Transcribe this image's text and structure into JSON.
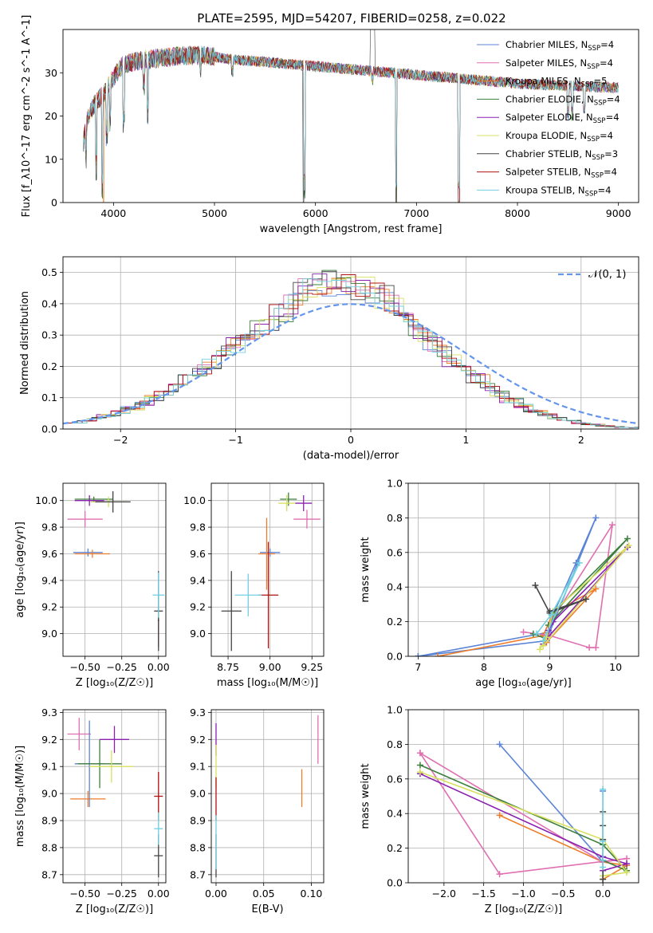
{
  "title": "PLATE=2595, MJD=54207, FIBERID=0258, z=0.022",
  "colors": {
    "chabrier_miles": "#5b84d6",
    "salpeter_miles": "#e06fb0",
    "kroupa_miles": "#ee7d2a",
    "chabrier_elodie": "#3d7f3d",
    "salpeter_elodie": "#8a20b0",
    "kroupa_elodie": "#d8e060",
    "chabrier_stelib": "#444444",
    "salpeter_stelib": "#b01010",
    "kroupa_stelib": "#70d0e0",
    "gauss": "#6495ED"
  },
  "chart_data": [
    {
      "id": "spectrum",
      "type": "line",
      "xlabel": "wavelength [Angstrom, rest frame]",
      "ylabel": "Flux [f_λ10^-17 erg cm^-2 s^-1 A^-1]",
      "xlim": [
        3500,
        9200
      ],
      "ylim": [
        0,
        40
      ],
      "xticks": [
        "4000",
        "5000",
        "6000",
        "7000",
        "8000",
        "9000"
      ],
      "yticks": [
        "0",
        "10",
        "20",
        "30"
      ],
      "grid": false,
      "legend_position": "top-right",
      "legend": [
        {
          "key": "chabrier_miles",
          "label": "Chabrier MILES, N",
          "sub": "SSP",
          "val": "=4"
        },
        {
          "key": "salpeter_miles",
          "label": "Salpeter MILES, N",
          "sub": "SSP",
          "val": "=4"
        },
        {
          "key": "kroupa_miles",
          "label": "Kroupa MILES, N",
          "sub": "SSP",
          "val": "=5"
        },
        {
          "key": "chabrier_elodie",
          "label": "Chabrier ELODIE, N",
          "sub": "SSP",
          "val": "=4"
        },
        {
          "key": "salpeter_elodie",
          "label": "Salpeter ELODIE, N",
          "sub": "SSP",
          "val": "=4"
        },
        {
          "key": "kroupa_elodie",
          "label": "Kroupa ELODIE, N",
          "sub": "SSP",
          "val": "=4"
        },
        {
          "key": "chabrier_stelib",
          "label": "Chabrier STELIB, N",
          "sub": "SSP",
          "val": "=3"
        },
        {
          "key": "salpeter_stelib",
          "label": "Salpeter STELIB, N",
          "sub": "SSP",
          "val": "=4"
        },
        {
          "key": "kroupa_stelib",
          "label": "Kroupa STELIB, N",
          "sub": "SSP",
          "val": "=4"
        }
      ],
      "continuum": [
        [
          3700,
          14
        ],
        [
          3750,
          20
        ],
        [
          3820,
          23
        ],
        [
          3900,
          25
        ],
        [
          4000,
          29
        ],
        [
          4100,
          32
        ],
        [
          4300,
          33
        ],
        [
          4500,
          33.5
        ],
        [
          4700,
          34
        ],
        [
          4900,
          34
        ],
        [
          5200,
          33
        ],
        [
          5500,
          32.5
        ],
        [
          6000,
          31.5
        ],
        [
          6500,
          30.5
        ],
        [
          7000,
          29.5
        ],
        [
          7500,
          28.5
        ],
        [
          8000,
          27.5
        ],
        [
          8500,
          27
        ],
        [
          9000,
          26.5
        ]
      ],
      "dips": [
        [
          3727,
          8
        ],
        [
          3830,
          16
        ],
        [
          3890,
          22
        ],
        [
          3933,
          11
        ],
        [
          3968,
          9
        ],
        [
          4102,
          14
        ],
        [
          4300,
          6
        ],
        [
          4340,
          13
        ],
        [
          4861,
          3
        ],
        [
          5175,
          3
        ],
        [
          5890,
          30
        ],
        [
          6563,
          2
        ],
        [
          6800,
          30
        ],
        [
          7420,
          29
        ],
        [
          8500,
          7
        ],
        [
          8542,
          7
        ],
        [
          8662,
          6
        ]
      ],
      "spike": [
        6563,
        40
      ]
    },
    {
      "id": "residuals",
      "type": "histogram",
      "xlabel": "(data-model)/error",
      "ylabel": "Normed distribution",
      "xlim": [
        -2.5,
        2.5
      ],
      "ylim": [
        0,
        0.55
      ],
      "xticks": [
        "−2",
        "−1",
        "0",
        "1",
        "2"
      ],
      "yticks": [
        "0.0",
        "0.1",
        "0.2",
        "0.3",
        "0.4",
        "0.5"
      ],
      "grid": true,
      "legend_position": "top-right",
      "legend_label": "𝒩(0, 1)",
      "bin_edges": [
        -2.5,
        2.5,
        41
      ],
      "base_density": [
        0.017,
        0.021,
        0.027,
        0.034,
        0.043,
        0.054,
        0.067,
        0.082,
        0.099,
        0.118,
        0.14,
        0.163,
        0.188,
        0.214,
        0.241,
        0.268,
        0.296,
        0.322,
        0.347,
        0.37,
        0.39,
        0.406,
        0.418,
        0.425,
        0.427,
        0.423,
        0.414,
        0.4,
        0.381,
        0.358,
        0.333,
        0.305,
        0.276,
        0.246,
        0.217,
        0.188,
        0.161,
        0.136,
        0.113,
        0.092,
        0.074,
        0.058,
        0.045,
        0.034,
        0.026,
        0.019,
        0.014,
        0.01,
        0.007,
        0.005,
        0.004
      ]
    },
    {
      "id": "age-vs-Z",
      "type": "errorbar",
      "xlabel": "Z [log₁₀(Z/Z☉)]",
      "ylabel": "age [log₁₀(age/yr)]",
      "xlim": [
        -0.65,
        0.05
      ],
      "ylim": [
        8.83,
        10.13
      ],
      "xticks": [
        "−0.50",
        "−0.25",
        "0.00"
      ],
      "yticks": [
        "9.0",
        "9.2",
        "9.4",
        "9.6",
        "9.8",
        "10.0"
      ],
      "grid": true,
      "points": [
        {
          "c": "chabrier_miles",
          "x": -0.48,
          "xe": 0.1,
          "y": 9.61,
          "ye": 0.03
        },
        {
          "c": "kroupa_miles",
          "x": -0.45,
          "xe": 0.12,
          "y": 9.6,
          "ye": 0.03
        },
        {
          "c": "salpeter_miles",
          "x": -0.5,
          "xe": 0.12,
          "y": 9.86,
          "ye": 0.06
        },
        {
          "c": "chabrier_elodie",
          "x": -0.44,
          "xe": 0.13,
          "y": 10.01,
          "ye": 0.02
        },
        {
          "c": "salpeter_elodie",
          "x": -0.47,
          "xe": 0.1,
          "y": 10.0,
          "ye": 0.04
        },
        {
          "c": "kroupa_elodie",
          "x": -0.34,
          "xe": 0.12,
          "y": 9.99,
          "ye": 0.04
        },
        {
          "c": "chabrier_stelib",
          "x": -0.31,
          "xe": 0.12,
          "y": 9.99,
          "ye": 0.08
        },
        {
          "c": "salpeter_stelib",
          "x": 0.0,
          "xe": 0.005,
          "y": 9.1,
          "ye": 0.2
        },
        {
          "c": "chabrier_stelib",
          "x": 0.0,
          "xe": 0.03,
          "y": 9.17,
          "ye": 0.3
        },
        {
          "c": "kroupa_stelib",
          "x": 0.0,
          "xe": 0.04,
          "y": 9.29,
          "ye": 0.17
        }
      ]
    },
    {
      "id": "age-vs-mass",
      "type": "errorbar",
      "xlabel": "mass [log₁₀(M/M☉)]",
      "ylabel": "",
      "xlim": [
        8.65,
        9.32
      ],
      "ylim": [
        8.83,
        10.13
      ],
      "xticks": [
        "8.75",
        "9.00",
        "9.25"
      ],
      "yticks": [
        "9.0",
        "9.2",
        "9.4",
        "9.6",
        "9.8",
        "10.0"
      ],
      "grid": true,
      "points": [
        {
          "c": "chabrier_miles",
          "x": 9.0,
          "xe": 0.06,
          "y": 9.61,
          "ye": 0.03
        },
        {
          "c": "kroupa_miles",
          "x": 8.98,
          "xe": 0.05,
          "y": 9.6,
          "ye": 0.27
        },
        {
          "c": "salpeter_miles",
          "x": 9.22,
          "xe": 0.08,
          "y": 9.86,
          "ye": 0.07
        },
        {
          "c": "chabrier_elodie",
          "x": 9.11,
          "xe": 0.05,
          "y": 10.01,
          "ye": 0.05
        },
        {
          "c": "salpeter_elodie",
          "x": 9.2,
          "xe": 0.05,
          "y": 9.98,
          "ye": 0.06
        },
        {
          "c": "kroupa_elodie",
          "x": 9.1,
          "xe": 0.05,
          "y": 9.98,
          "ye": 0.06
        },
        {
          "c": "salpeter_stelib",
          "x": 8.99,
          "xe": 0.06,
          "y": 9.29,
          "ye": 0.4
        },
        {
          "c": "chabrier_stelib",
          "x": 8.77,
          "xe": 0.06,
          "y": 9.17,
          "ye": 0.3
        },
        {
          "c": "kroupa_stelib",
          "x": 8.87,
          "xe": 0.08,
          "y": 9.29,
          "ye": 0.16
        }
      ]
    },
    {
      "id": "weight-vs-age",
      "type": "line",
      "xlabel": "age [log₁₀(age/yr)]",
      "ylabel": "mass weight",
      "xlim": [
        6.85,
        10.35
      ],
      "ylim": [
        0,
        1
      ],
      "xticks": [
        "7",
        "8",
        "9",
        "10"
      ],
      "yticks": [
        "0.0",
        "0.2",
        "0.4",
        "0.6",
        "0.8",
        "1.0"
      ],
      "grid": true,
      "series": [
        {
          "c": "chabrier_miles",
          "pts": [
            [
              7.0,
              0.0
            ],
            [
              8.95,
              0.09
            ],
            [
              9.05,
              0.24
            ],
            [
              9.4,
              0.54
            ],
            [
              9.7,
              0.8
            ],
            [
              9.0,
              0.14
            ],
            [
              7.0,
              0.0
            ]
          ]
        },
        {
          "c": "kroupa_miles",
          "pts": [
            [
              7.3,
              0.0
            ],
            [
              8.9,
              0.12
            ],
            [
              9.05,
              0.25
            ],
            [
              9.7,
              0.39
            ],
            [
              8.95,
              0.08
            ]
          ]
        },
        {
          "c": "salpeter_miles",
          "pts": [
            [
              8.6,
              0.14
            ],
            [
              9.0,
              0.12
            ],
            [
              9.6,
              0.05
            ],
            [
              9.7,
              0.05
            ],
            [
              9.95,
              0.76
            ],
            [
              9.05,
              0.22
            ]
          ]
        },
        {
          "c": "chabrier_elodie",
          "pts": [
            [
              8.75,
              0.13
            ],
            [
              8.95,
              0.1
            ],
            [
              9.05,
              0.25
            ],
            [
              10.18,
              0.68
            ],
            [
              8.98,
              0.18
            ]
          ]
        },
        {
          "c": "salpeter_elodie",
          "pts": [
            [
              8.9,
              0.07
            ],
            [
              8.98,
              0.15
            ],
            [
              9.05,
              0.2
            ],
            [
              10.18,
              0.63
            ],
            [
              8.95,
              0.1
            ]
          ]
        },
        {
          "c": "kroupa_elodie",
          "pts": [
            [
              8.85,
              0.04
            ],
            [
              8.95,
              0.11
            ],
            [
              9.05,
              0.26
            ],
            [
              10.2,
              0.64
            ],
            [
              8.9,
              0.06
            ]
          ]
        },
        {
          "c": "chabrier_stelib",
          "pts": [
            [
              8.78,
              0.41
            ],
            [
              9.0,
              0.25
            ],
            [
              9.55,
              0.33
            ],
            [
              9.0,
              0.26
            ]
          ]
        },
        {
          "c": "kroupa_stelib",
          "pts": [
            [
              8.8,
              0.13
            ],
            [
              9.02,
              0.24
            ],
            [
              9.45,
              0.54
            ],
            [
              8.9,
              0.09
            ]
          ]
        }
      ]
    },
    {
      "id": "mass-vs-Z",
      "type": "errorbar",
      "xlabel": "Z [log₁₀(Z/Z☉)]",
      "ylabel": "mass [log₁₀(M/M☉)]",
      "xlim": [
        -0.65,
        0.05
      ],
      "ylim": [
        8.67,
        9.31
      ],
      "xticks": [
        "−0.50",
        "−0.25",
        "0.00"
      ],
      "yticks": [
        "8.7",
        "8.8",
        "8.9",
        "9.0",
        "9.1",
        "9.2",
        "9.3"
      ],
      "grid": true,
      "points": [
        {
          "c": "kroupa_miles",
          "x": -0.48,
          "xe": 0.12,
          "y": 8.98,
          "ye": 0.03
        },
        {
          "c": "salpeter_miles",
          "x": -0.54,
          "xe": 0.08,
          "y": 9.22,
          "ye": 0.06
        },
        {
          "c": "chabrier_miles",
          "x": -0.47,
          "xe": 0.1,
          "y": 9.11,
          "ye": 0.16
        },
        {
          "c": "chabrier_elodie",
          "x": -0.4,
          "xe": 0.15,
          "y": 9.11,
          "ye": 0.09
        },
        {
          "c": "salpeter_elodie",
          "x": -0.3,
          "xe": 0.1,
          "y": 9.2,
          "ye": 0.05
        },
        {
          "c": "kroupa_elodie",
          "x": -0.32,
          "xe": 0.15,
          "y": 9.1,
          "ye": 0.06
        },
        {
          "c": "salpeter_stelib",
          "x": 0.0,
          "xe": 0.03,
          "y": 8.99,
          "ye": 0.09
        },
        {
          "c": "chabrier_stelib",
          "x": 0.0,
          "xe": 0.03,
          "y": 8.77,
          "ye": 0.08
        },
        {
          "c": "kroupa_stelib",
          "x": 0.0,
          "xe": 0.03,
          "y": 8.87,
          "ye": 0.06
        }
      ]
    },
    {
      "id": "mass-vs-EBV",
      "type": "errorbar",
      "xlabel": "E(B-V)",
      "ylabel": "",
      "xlim": [
        -0.005,
        0.113
      ],
      "ylim": [
        8.67,
        9.31
      ],
      "xticks": [
        "0.00",
        "0.05",
        "0.10"
      ],
      "yticks": [
        "8.7",
        "8.8",
        "8.9",
        "9.0",
        "9.1",
        "9.2",
        "9.3"
      ],
      "grid": true,
      "points": [
        {
          "c": "salpeter_elodie",
          "x": 0.0,
          "xe": 0.0,
          "y": 9.2,
          "ye": 0.06
        },
        {
          "c": "kroupa_elodie",
          "x": 0.0,
          "xe": 0.0,
          "y": 9.1,
          "ye": 0.08
        },
        {
          "c": "salpeter_stelib",
          "x": 0.0,
          "xe": 0.0,
          "y": 8.98,
          "ye": 0.08
        },
        {
          "c": "chabrier_stelib",
          "x": 0.0,
          "xe": 0.0,
          "y": 8.77,
          "ye": 0.08
        },
        {
          "c": "kroupa_stelib",
          "x": 0.0,
          "xe": 0.0,
          "y": 8.82,
          "ye": 0.1
        },
        {
          "c": "kroupa_miles",
          "x": 0.09,
          "xe": 0.0,
          "y": 9.02,
          "ye": 0.07
        },
        {
          "c": "salpeter_miles",
          "x": 0.107,
          "xe": 0.0,
          "y": 9.2,
          "ye": 0.09
        }
      ]
    },
    {
      "id": "weight-vs-Z",
      "type": "line",
      "xlabel": "Z [log₁₀(Z/Z☉)]",
      "ylabel": "mass weight",
      "xlim": [
        -2.45,
        0.45
      ],
      "ylim": [
        0,
        1
      ],
      "xticks": [
        "−2.0",
        "−1.5",
        "−1.0",
        "−0.5",
        "0.0"
      ],
      "yticks": [
        "0.0",
        "0.2",
        "0.4",
        "0.6",
        "0.8",
        "1.0"
      ],
      "grid": true,
      "series": [
        {
          "c": "chabrier_miles",
          "pts": [
            [
              -1.3,
              0.8
            ],
            [
              0.0,
              0.12
            ],
            [
              0.0,
              0.53
            ],
            [
              0.0,
              0.15
            ]
          ]
        },
        {
          "c": "kroupa_miles",
          "pts": [
            [
              -1.3,
              0.39
            ],
            [
              0.0,
              0.12
            ],
            [
              0.3,
              0.1
            ],
            [
              0.0,
              0.02
            ]
          ]
        },
        {
          "c": "salpeter_miles",
          "pts": [
            [
              -2.3,
              0.75
            ],
            [
              -1.3,
              0.05
            ],
            [
              0.3,
              0.14
            ],
            [
              0.0,
              0.12
            ],
            [
              -2.3,
              0.75
            ]
          ]
        },
        {
          "c": "chabrier_elodie",
          "pts": [
            [
              -2.3,
              0.68
            ],
            [
              0.0,
              0.22
            ],
            [
              0.3,
              0.07
            ],
            [
              0.0,
              0.13
            ]
          ]
        },
        {
          "c": "salpeter_elodie",
          "pts": [
            [
              -2.3,
              0.63
            ],
            [
              0.0,
              0.15
            ],
            [
              0.3,
              0.11
            ],
            [
              0.0,
              0.07
            ]
          ]
        },
        {
          "c": "kroupa_elodie",
          "pts": [
            [
              -2.3,
              0.64
            ],
            [
              0.0,
              0.25
            ],
            [
              0.3,
              0.06
            ],
            [
              0.0,
              0.04
            ]
          ]
        },
        {
          "c": "chabrier_stelib",
          "pts": [
            [
              0.0,
              0.41
            ],
            [
              0.0,
              0.33
            ],
            [
              0.0,
              0.25
            ],
            [
              0.0,
              0.02
            ]
          ]
        },
        {
          "c": "kroupa_stelib",
          "pts": [
            [
              0.0,
              0.54
            ],
            [
              0.0,
              0.24
            ],
            [
              0.0,
              0.13
            ],
            [
              0.0,
              0.09
            ]
          ]
        }
      ]
    }
  ]
}
